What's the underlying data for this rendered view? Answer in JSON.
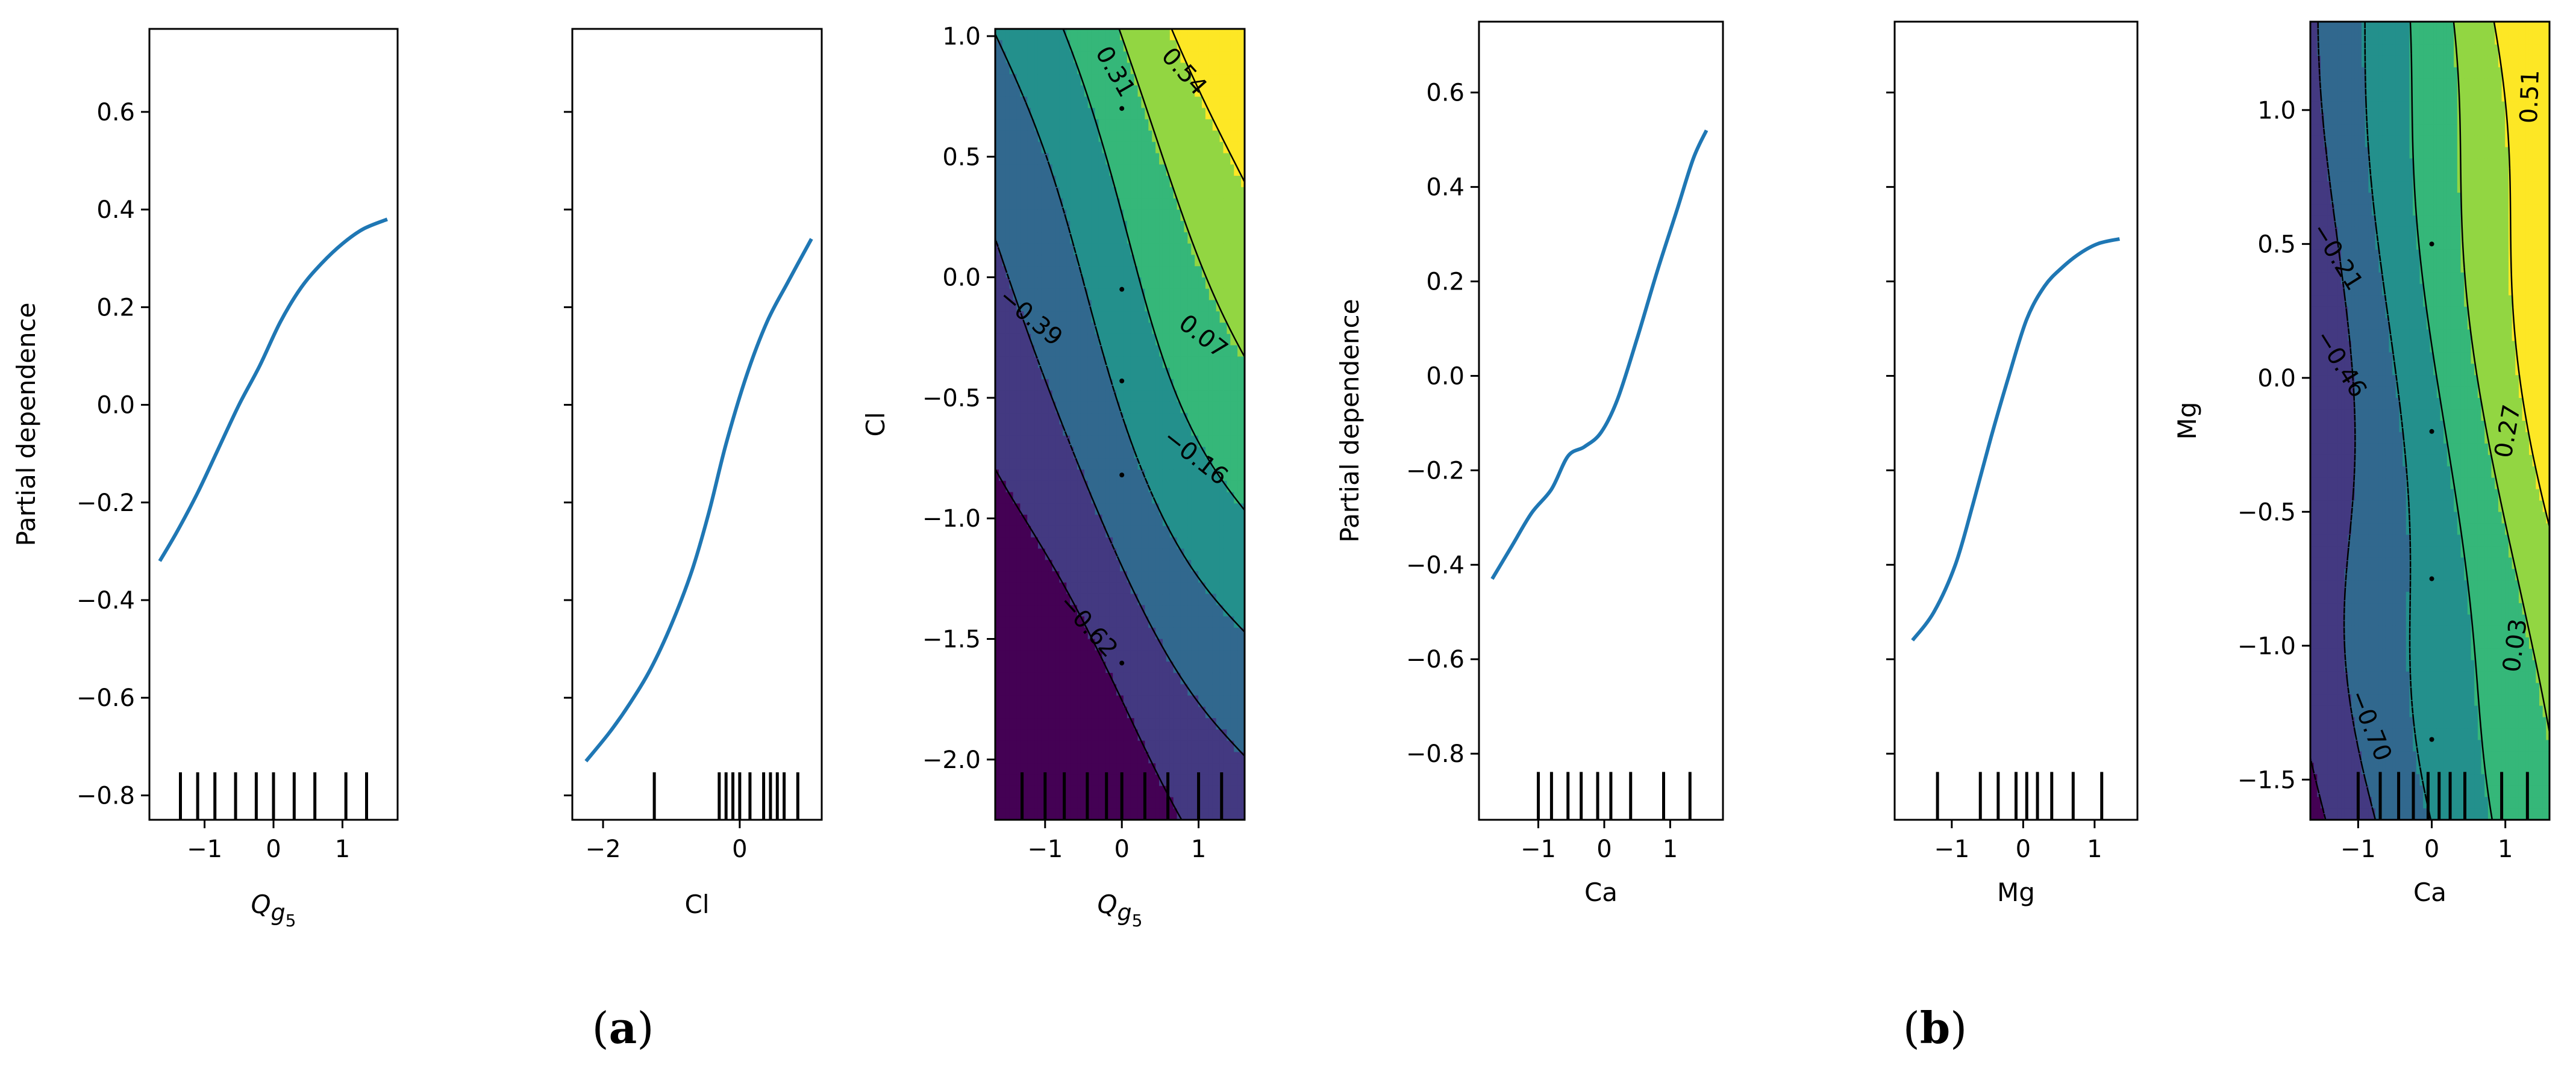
{
  "panel_labels": {
    "a": {
      "open": "(",
      "letter": "a",
      "close": ")"
    },
    "b": {
      "open": "(",
      "letter": "b",
      "close": ")"
    }
  },
  "colors": {
    "line": "#1f77b4",
    "viridis": [
      "#440154",
      "#482878",
      "#3e4989",
      "#31688e",
      "#26828e",
      "#1f9e89",
      "#35b779",
      "#6ece58",
      "#b5de2b",
      "#fde725"
    ]
  },
  "chart_data": [
    {
      "type": "line",
      "id": "a1",
      "xlabel": {
        "main": "Q",
        "sub": "g",
        "subsub": "5"
      },
      "ylabel": "Partial dependence",
      "xlim": [
        -1.8,
        1.8
      ],
      "ylim": [
        -0.85,
        0.77
      ],
      "xticks": [
        {
          "v": -1,
          "label": "−1"
        },
        {
          "v": 0,
          "label": "0"
        },
        {
          "v": 1,
          "label": "1"
        }
      ],
      "yticks": [
        {
          "v": -0.8,
          "label": "−0.8"
        },
        {
          "v": -0.6,
          "label": "−0.6"
        },
        {
          "v": -0.4,
          "label": "−0.4"
        },
        {
          "v": -0.2,
          "label": "−0.2"
        },
        {
          "v": 0.0,
          "label": "0.0"
        },
        {
          "v": 0.2,
          "label": "0.2"
        },
        {
          "v": 0.4,
          "label": "0.4"
        },
        {
          "v": 0.6,
          "label": "0.6"
        }
      ],
      "show_ytick_labels": true,
      "x": [
        -1.65,
        -1.4,
        -1.1,
        -0.8,
        -0.5,
        -0.2,
        0.1,
        0.4,
        0.7,
        1.0,
        1.3,
        1.65
      ],
      "y": [
        -0.32,
        -0.26,
        -0.18,
        -0.09,
        0.0,
        0.08,
        0.17,
        0.24,
        0.29,
        0.33,
        0.36,
        0.38
      ],
      "rug": [
        -1.35,
        -1.1,
        -0.85,
        -0.55,
        -0.25,
        0.0,
        0.3,
        0.6,
        1.05,
        1.35
      ]
    },
    {
      "type": "line",
      "id": "a2",
      "xlabel": {
        "main": "Cl"
      },
      "ylabel": "",
      "xlim": [
        -2.45,
        1.2
      ],
      "ylim": [
        -0.85,
        0.77
      ],
      "xticks": [
        {
          "v": -2,
          "label": "−2"
        },
        {
          "v": 0,
          "label": "0"
        }
      ],
      "yticks": [
        {
          "v": -0.8
        },
        {
          "v": -0.6
        },
        {
          "v": -0.4
        },
        {
          "v": -0.2
        },
        {
          "v": 0.0
        },
        {
          "v": 0.2
        },
        {
          "v": 0.4
        },
        {
          "v": 0.6
        }
      ],
      "show_ytick_labels": false,
      "x": [
        -2.25,
        -1.9,
        -1.6,
        -1.3,
        -1.0,
        -0.7,
        -0.45,
        -0.2,
        0.1,
        0.4,
        0.7,
        1.05
      ],
      "y": [
        -0.73,
        -0.67,
        -0.61,
        -0.54,
        -0.45,
        -0.34,
        -0.22,
        -0.08,
        0.06,
        0.17,
        0.25,
        0.34
      ],
      "rug": [
        -1.25,
        -0.3,
        -0.2,
        -0.1,
        0.0,
        0.15,
        0.35,
        0.45,
        0.55,
        0.65,
        0.85
      ]
    },
    {
      "type": "contour",
      "id": "a3",
      "xlabel": {
        "main": "Q",
        "sub": "g",
        "subsub": "5"
      },
      "ylabel": "Cl",
      "xlim": [
        -1.65,
        1.6
      ],
      "ylim": [
        -2.25,
        1.03
      ],
      "xticks": [
        {
          "v": -1,
          "label": "−1"
        },
        {
          "v": 0,
          "label": "0"
        },
        {
          "v": 1,
          "label": "1"
        }
      ],
      "yticks": [
        {
          "v": -2.0,
          "label": "−2.0"
        },
        {
          "v": -1.5,
          "label": "−1.5"
        },
        {
          "v": -1.0,
          "label": "−1.0"
        },
        {
          "v": -0.5,
          "label": "−0.5"
        },
        {
          "v": 0.0,
          "label": "0.0"
        },
        {
          "v": 0.5,
          "label": "0.5"
        },
        {
          "v": 1.0,
          "label": "1.0"
        }
      ],
      "levels": [
        -0.62,
        -0.39,
        -0.16,
        0.07,
        0.31,
        0.54
      ],
      "model": {
        "a": 0.26,
        "b": 0.34,
        "c": -0.12,
        "d": 0.03
      },
      "contour_labels": [
        {
          "text": "0.54",
          "x": 0.8,
          "y": 0.85,
          "rot": 48
        },
        {
          "text": "0.31",
          "x": -0.1,
          "y": 0.85,
          "rot": 60
        },
        {
          "text": "0.07",
          "x": 1.05,
          "y": -0.25,
          "rot": 38
        },
        {
          "text": "−0.16",
          "x": 0.95,
          "y": -0.75,
          "rot": 38
        },
        {
          "text": "−0.39",
          "x": -1.2,
          "y": -0.17,
          "rot": 40
        },
        {
          "text": "−0.62",
          "x": -0.45,
          "y": -1.45,
          "rot": 48
        }
      ],
      "grid_points": [
        {
          "x": 0.0,
          "y": 0.7
        },
        {
          "x": 0.0,
          "y": -0.05
        },
        {
          "x": 0.0,
          "y": -0.43
        },
        {
          "x": 0.0,
          "y": -0.82
        },
        {
          "x": 0.0,
          "y": -1.6
        }
      ],
      "rug": [
        -1.3,
        -1.0,
        -0.75,
        -0.45,
        -0.2,
        0.0,
        0.3,
        0.6,
        1.0,
        1.3
      ]
    },
    {
      "type": "line",
      "id": "b1",
      "xlabel": {
        "main": "Ca"
      },
      "ylabel": "Partial dependence",
      "xlim": [
        -1.9,
        1.8
      ],
      "ylim": [
        -0.94,
        0.75
      ],
      "xticks": [
        {
          "v": -1,
          "label": "−1"
        },
        {
          "v": 0,
          "label": "0"
        },
        {
          "v": 1,
          "label": "1"
        }
      ],
      "yticks": [
        {
          "v": -0.8,
          "label": "−0.8"
        },
        {
          "v": -0.6,
          "label": "−0.6"
        },
        {
          "v": -0.4,
          "label": "−0.4"
        },
        {
          "v": -0.2,
          "label": "−0.2"
        },
        {
          "v": 0.0,
          "label": "0.0"
        },
        {
          "v": 0.2,
          "label": "0.2"
        },
        {
          "v": 0.4,
          "label": "0.4"
        },
        {
          "v": 0.6,
          "label": "0.6"
        }
      ],
      "show_ytick_labels": true,
      "x": [
        -1.7,
        -1.4,
        -1.1,
        -0.8,
        -0.55,
        -0.3,
        -0.05,
        0.2,
        0.5,
        0.8,
        1.1,
        1.35,
        1.55
      ],
      "y": [
        -0.43,
        -0.36,
        -0.29,
        -0.24,
        -0.17,
        -0.15,
        -0.12,
        -0.05,
        0.08,
        0.22,
        0.35,
        0.46,
        0.52
      ],
      "rug": [
        -1.0,
        -0.8,
        -0.55,
        -0.35,
        -0.1,
        0.1,
        0.4,
        0.9,
        1.3
      ]
    },
    {
      "type": "line",
      "id": "b2",
      "xlabel": {
        "main": "Mg"
      },
      "ylabel": "",
      "xlim": [
        -1.8,
        1.6
      ],
      "ylim": [
        -0.94,
        0.75
      ],
      "xticks": [
        {
          "v": -1,
          "label": "−1"
        },
        {
          "v": 0,
          "label": "0"
        },
        {
          "v": 1,
          "label": "1"
        }
      ],
      "yticks": [
        {
          "v": -0.8
        },
        {
          "v": -0.6
        },
        {
          "v": -0.4
        },
        {
          "v": -0.2
        },
        {
          "v": 0.0
        },
        {
          "v": 0.2
        },
        {
          "v": 0.4
        },
        {
          "v": 0.6
        }
      ],
      "show_ytick_labels": false,
      "x": [
        -1.55,
        -1.25,
        -0.95,
        -0.7,
        -0.45,
        -0.2,
        0.05,
        0.3,
        0.55,
        0.8,
        1.05,
        1.35
      ],
      "y": [
        -0.56,
        -0.5,
        -0.4,
        -0.27,
        -0.13,
        0.0,
        0.12,
        0.19,
        0.23,
        0.26,
        0.28,
        0.29
      ],
      "rug": [
        -1.2,
        -0.6,
        -0.35,
        -0.1,
        0.05,
        0.2,
        0.4,
        0.7,
        1.1
      ]
    },
    {
      "type": "contour",
      "id": "b3",
      "xlabel": {
        "main": "Ca"
      },
      "ylabel": "Mg",
      "xlim": [
        -1.65,
        1.6
      ],
      "ylim": [
        -1.65,
        1.33
      ],
      "xticks": [
        {
          "v": -1,
          "label": "−1"
        },
        {
          "v": 0,
          "label": "0"
        },
        {
          "v": 1,
          "label": "1"
        }
      ],
      "yticks": [
        {
          "v": -1.5,
          "label": "−1.5"
        },
        {
          "v": -1.0,
          "label": "−1.0"
        },
        {
          "v": -0.5,
          "label": "−0.5"
        },
        {
          "v": 0.0,
          "label": "0.0"
        },
        {
          "v": 0.5,
          "label": "0.5"
        },
        {
          "v": 1.0,
          "label": "1.0"
        }
      ],
      "levels": [
        -0.7,
        -0.46,
        -0.21,
        0.03,
        0.27,
        0.51
      ],
      "model": {
        "a": 0.38,
        "b": 0.15,
        "c": -0.12,
        "d": 0.05
      },
      "contour_labels": [
        {
          "text": "0.51",
          "x": 1.35,
          "y": 1.05,
          "rot": -88
        },
        {
          "text": "0.27",
          "x": 1.05,
          "y": -0.2,
          "rot": -80
        },
        {
          "text": "0.03",
          "x": 1.15,
          "y": -1.0,
          "rot": -82
        },
        {
          "text": "−0.21",
          "x": -1.3,
          "y": 0.45,
          "rot": 58
        },
        {
          "text": "−0.46",
          "x": -1.25,
          "y": 0.05,
          "rot": 58
        },
        {
          "text": "−0.70",
          "x": -0.85,
          "y": -1.3,
          "rot": 68
        }
      ],
      "grid_points": [
        {
          "x": 0.0,
          "y": 0.5
        },
        {
          "x": 0.0,
          "y": -0.2
        },
        {
          "x": 0.0,
          "y": -0.75
        },
        {
          "x": 0.0,
          "y": -1.35
        }
      ],
      "rug": [
        -1.0,
        -0.7,
        -0.45,
        -0.25,
        -0.05,
        0.1,
        0.25,
        0.45,
        0.95,
        1.3
      ]
    }
  ]
}
